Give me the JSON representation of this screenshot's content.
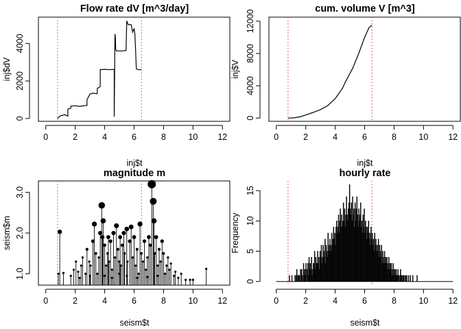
{
  "chart_data": [
    {
      "id": "flow",
      "type": "line",
      "title": "Flow rate dV [m^3/day]",
      "xlabel": "inj$t",
      "ylabel": "inj$dV",
      "xlim": [
        -0.5,
        12.5
      ],
      "ylim": [
        -150,
        5400
      ],
      "xticks": [
        0,
        2,
        4,
        6,
        8,
        10,
        12
      ],
      "yticks": [
        0,
        2000,
        4000
      ],
      "vlines": [
        0.8,
        6.5
      ],
      "vline_color": "#e05050",
      "x": [
        0.8,
        0.9,
        1.0,
        1.3,
        1.5,
        1.5,
        1.7,
        1.7,
        2.0,
        2.3,
        2.8,
        2.8,
        3.0,
        3.2,
        3.5,
        3.5,
        3.7,
        3.7,
        4.0,
        4.3,
        4.65,
        4.65,
        4.7,
        4.73,
        4.75,
        4.8,
        4.85,
        5.2,
        5.45,
        5.5,
        5.6,
        5.8,
        5.9,
        6.0,
        6.05,
        6.1,
        6.15,
        6.2,
        6.3,
        6.5
      ],
      "y": [
        0,
        80,
        150,
        200,
        130,
        500,
        550,
        660,
        680,
        650,
        700,
        1000,
        1300,
        1350,
        1320,
        1600,
        1700,
        2600,
        2620,
        2600,
        2620,
        100,
        4500,
        4300,
        3700,
        3600,
        3600,
        3600,
        3620,
        5200,
        5000,
        5000,
        4600,
        4800,
        4500,
        3700,
        2650,
        2620,
        2600,
        2600
      ]
    },
    {
      "id": "volume",
      "type": "line",
      "title": "cum. volume V [m^3]",
      "xlabel": "inj$t",
      "ylabel": "inj$V",
      "xlim": [
        -0.5,
        12.5
      ],
      "ylim": [
        -400,
        12500
      ],
      "xticks": [
        0,
        2,
        4,
        6,
        8,
        10,
        12
      ],
      "yticks": [
        0,
        4000,
        8000,
        12000
      ],
      "vlines": [
        0.8,
        6.5
      ],
      "vline_color": "#e05050",
      "x": [
        0.8,
        1.2,
        1.6,
        2.0,
        2.5,
        3.0,
        3.5,
        4.0,
        4.5,
        4.7,
        5.2,
        5.6,
        6.0,
        6.3,
        6.5
      ],
      "y": [
        0,
        30,
        150,
        380,
        700,
        1050,
        1550,
        2400,
        3700,
        4500,
        6200,
        8000,
        10000,
        11200,
        11500
      ]
    },
    {
      "id": "magnitude",
      "type": "scatter",
      "title": "magnitude m",
      "xlabel": "seism$t",
      "ylabel": "seism$m",
      "xlim": [
        -0.5,
        12.5
      ],
      "ylim": [
        0.72,
        3.28
      ],
      "baseline": 0.72,
      "xticks": [
        0,
        2,
        4,
        6,
        8,
        10,
        12
      ],
      "yticks": [
        1.0,
        2.0,
        3.0
      ],
      "ytick_labels": [
        "1.0",
        "2.0",
        "3.0"
      ],
      "vlines": [
        0.8,
        6.5
      ],
      "vline_color": "#e05050",
      "points": [
        [
          0.95,
          2.03
        ],
        [
          0.85,
          1.0
        ],
        [
          1.2,
          1.02
        ],
        [
          1.7,
          0.95
        ],
        [
          1.9,
          1.1
        ],
        [
          2.05,
          1.3
        ],
        [
          2.2,
          1.05
        ],
        [
          2.4,
          1.2
        ],
        [
          2.5,
          1.4
        ],
        [
          2.7,
          1.0
        ],
        [
          2.8,
          1.6
        ],
        [
          2.95,
          1.3
        ],
        [
          3.05,
          1.2
        ],
        [
          3.2,
          1.8
        ],
        [
          3.3,
          2.22
        ],
        [
          3.4,
          1.5
        ],
        [
          3.5,
          1.0
        ],
        [
          3.6,
          1.4
        ],
        [
          3.7,
          2.0
        ],
        [
          3.8,
          2.68
        ],
        [
          3.85,
          1.9
        ],
        [
          3.9,
          2.3
        ],
        [
          4.0,
          1.7
        ],
        [
          4.1,
          1.2
        ],
        [
          4.2,
          1.5
        ],
        [
          4.25,
          1.9
        ],
        [
          4.3,
          1.3
        ],
        [
          4.4,
          1.8
        ],
        [
          4.5,
          1.1
        ],
        [
          4.6,
          2.0
        ],
        [
          4.7,
          1.4
        ],
        [
          4.8,
          2.18
        ],
        [
          4.9,
          1.6
        ],
        [
          5.0,
          1.3
        ],
        [
          5.05,
          1.9
        ],
        [
          5.1,
          1.2
        ],
        [
          5.2,
          1.7
        ],
        [
          5.3,
          2.0
        ],
        [
          5.35,
          1.5
        ],
        [
          5.5,
          2.1
        ],
        [
          5.55,
          1.3
        ],
        [
          5.7,
          1.8
        ],
        [
          5.8,
          2.15
        ],
        [
          5.9,
          1.4
        ],
        [
          6.0,
          1.9
        ],
        [
          6.1,
          1.2
        ],
        [
          6.2,
          1.6
        ],
        [
          6.3,
          1.0
        ],
        [
          6.4,
          2.22
        ],
        [
          6.5,
          1.5
        ],
        [
          6.6,
          1.3
        ],
        [
          6.7,
          1.8
        ],
        [
          6.8,
          1.1
        ],
        [
          6.9,
          1.4
        ],
        [
          7.0,
          1.9
        ],
        [
          7.1,
          1.7
        ],
        [
          7.2,
          3.2
        ],
        [
          7.3,
          2.78
        ],
        [
          7.35,
          2.3
        ],
        [
          7.4,
          1.5
        ],
        [
          7.5,
          1.9
        ],
        [
          7.6,
          1.2
        ],
        [
          7.7,
          1.6
        ],
        [
          7.8,
          1.3
        ],
        [
          7.9,
          1.8
        ],
        [
          8.0,
          1.5
        ],
        [
          8.1,
          1.0
        ],
        [
          8.2,
          1.2
        ],
        [
          8.3,
          1.4
        ],
        [
          8.4,
          1.1
        ],
        [
          8.5,
          1.25
        ],
        [
          8.7,
          0.95
        ],
        [
          8.8,
          1.05
        ],
        [
          9.0,
          0.9
        ],
        [
          9.2,
          1.0
        ],
        [
          9.5,
          0.85
        ],
        [
          9.8,
          0.85
        ],
        [
          10.0,
          0.85
        ],
        [
          10.9,
          1.12
        ],
        [
          2.3,
          0.9
        ],
        [
          3.0,
          0.95
        ],
        [
          4.5,
          0.9
        ],
        [
          5.5,
          0.95
        ],
        [
          6.2,
          0.9
        ],
        [
          7.6,
          0.95
        ],
        [
          5.0,
          1.0
        ],
        [
          4.0,
          0.95
        ],
        [
          6.9,
          0.92
        ]
      ]
    },
    {
      "id": "hourly",
      "type": "bar",
      "title": "hourly rate",
      "xlabel": "seism$t",
      "ylabel": "Frequency",
      "xlim": [
        -0.5,
        12.5
      ],
      "ylim": [
        -0.6,
        16.6
      ],
      "xticks": [
        0,
        2,
        4,
        6,
        8,
        10,
        12
      ],
      "yticks": [
        0,
        5,
        10,
        15
      ],
      "vlines": [
        0.8,
        6.5
      ],
      "vline_color": "#e05050",
      "x_start": 0.0,
      "bin_width": 0.04167,
      "counts": [
        0,
        0,
        0,
        0,
        0,
        0,
        0,
        0,
        0,
        0,
        0,
        0,
        0,
        0,
        0,
        0,
        0,
        0,
        0,
        0,
        0,
        1,
        0,
        0,
        0,
        1,
        0,
        0,
        0,
        0,
        1,
        0,
        1,
        2,
        0,
        1,
        1,
        1,
        0,
        2,
        1,
        2,
        1,
        0,
        3,
        2,
        1,
        2,
        3,
        0,
        2,
        3,
        1,
        4,
        2,
        3,
        2,
        4,
        1,
        2,
        3,
        3,
        5,
        2,
        4,
        3,
        3,
        5,
        3,
        4,
        2,
        5,
        4,
        6,
        3,
        4,
        6,
        5,
        4,
        7,
        3,
        6,
        5,
        4,
        8,
        5,
        6,
        7,
        6,
        5,
        8,
        6,
        7,
        9,
        7,
        8,
        6,
        9,
        10,
        8,
        9,
        11,
        8,
        10,
        12,
        9,
        11,
        9,
        10,
        13,
        10,
        12,
        9,
        11,
        14,
        11,
        10,
        12,
        13,
        16,
        12,
        11,
        13,
        10,
        14,
        11,
        12,
        9,
        13,
        10,
        12,
        14,
        11,
        9,
        12,
        10,
        11,
        13,
        9,
        10,
        8,
        11,
        9,
        12,
        8,
        10,
        9,
        7,
        9,
        8,
        10,
        7,
        8,
        6,
        9,
        7,
        8,
        6,
        7,
        5,
        8,
        6,
        7,
        5,
        6,
        5,
        7,
        4,
        6,
        5,
        4,
        6,
        3,
        5,
        4,
        3,
        5,
        3,
        4,
        3,
        4,
        2,
        3,
        4,
        2,
        3,
        2,
        3,
        1,
        2,
        3,
        1,
        2,
        2,
        1,
        2,
        1,
        1,
        2,
        1,
        0,
        1,
        2,
        1,
        1,
        0,
        1,
        1,
        0,
        1,
        0,
        1,
        1,
        0,
        0,
        1,
        0,
        0,
        1,
        0,
        0,
        0,
        1,
        0,
        0,
        0,
        0,
        0,
        0,
        1,
        0,
        0,
        0,
        0,
        0,
        0,
        0,
        0,
        0,
        0,
        0,
        0,
        0,
        0,
        0,
        0,
        0,
        0,
        0,
        0,
        0,
        0,
        0,
        0,
        0,
        0,
        0,
        0,
        0,
        0,
        0,
        0,
        0,
        0,
        0,
        0,
        0,
        0,
        0,
        0,
        0,
        0,
        0,
        0,
        0,
        0,
        0,
        0,
        0,
        0,
        0,
        0,
        0,
        0,
        0,
        0,
        0
      ]
    }
  ]
}
